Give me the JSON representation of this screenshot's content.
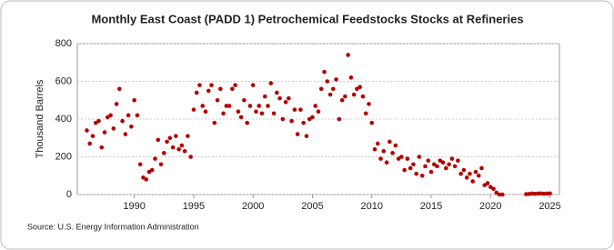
{
  "chart_data": {
    "type": "scatter",
    "title": "Monthly East Coast (PADD 1) Petrochemical Feedstocks Stocks at Refineries",
    "y_label": "Thousand Barrels",
    "source": "Source: U.S. Energy Information Administration",
    "color": "#b50000",
    "grid": true,
    "xlim": [
      1985.2,
      2025.8
    ],
    "xticks": [
      1990,
      1995,
      2000,
      2005,
      2010,
      2015,
      2020,
      2025
    ],
    "ylim": [
      0,
      800
    ],
    "yticks": [
      0,
      200,
      400,
      600,
      800
    ],
    "x": [
      1986,
      1986.25,
      1986.5,
      1986.75,
      1987,
      1987.25,
      1987.5,
      1987.75,
      1988,
      1988.25,
      1988.5,
      1988.75,
      1989,
      1989.25,
      1989.5,
      1989.75,
      1990,
      1990.25,
      1990.5,
      1990.75,
      1991,
      1991.25,
      1991.5,
      1991.75,
      1992,
      1992.25,
      1992.5,
      1992.75,
      1993,
      1993.25,
      1993.5,
      1993.75,
      1994,
      1994.25,
      1994.5,
      1994.75,
      1995,
      1995.25,
      1995.5,
      1995.75,
      1996,
      1996.25,
      1996.5,
      1996.75,
      1997,
      1997.25,
      1997.5,
      1997.75,
      1998,
      1998.25,
      1998.5,
      1998.75,
      1999,
      1999.25,
      1999.5,
      1999.75,
      2000,
      2000.25,
      2000.5,
      2000.75,
      2001,
      2001.25,
      2001.5,
      2001.75,
      2002,
      2002.25,
      2002.5,
      2002.75,
      2003,
      2003.25,
      2003.5,
      2003.75,
      2004,
      2004.25,
      2004.5,
      2004.75,
      2005,
      2005.25,
      2005.5,
      2005.75,
      2006,
      2006.25,
      2006.5,
      2006.75,
      2007,
      2007.25,
      2007.5,
      2007.75,
      2008,
      2008.25,
      2008.5,
      2008.75,
      2009,
      2009.25,
      2009.5,
      2009.75,
      2010,
      2010.25,
      2010.5,
      2010.75,
      2011,
      2011.25,
      2011.5,
      2011.75,
      2012,
      2012.25,
      2012.5,
      2012.75,
      2013,
      2013.25,
      2013.5,
      2013.75,
      2014,
      2014.25,
      2014.5,
      2014.75,
      2015,
      2015.25,
      2015.5,
      2015.75,
      2016,
      2016.25,
      2016.5,
      2016.75,
      2017,
      2017.25,
      2017.5,
      2017.75,
      2018,
      2018.25,
      2018.5,
      2018.75,
      2019,
      2019.25,
      2019.5,
      2019.75,
      2020,
      2020.25,
      2020.5,
      2020.75,
      2021,
      2023,
      2023.25,
      2023.5,
      2023.75,
      2024,
      2024.25,
      2024.5,
      2024.75,
      2025
    ],
    "values": [
      340,
      270,
      310,
      380,
      390,
      250,
      330,
      410,
      420,
      350,
      480,
      560,
      390,
      320,
      420,
      360,
      500,
      420,
      160,
      90,
      80,
      120,
      130,
      190,
      290,
      160,
      220,
      280,
      300,
      250,
      310,
      240,
      260,
      230,
      310,
      200,
      450,
      540,
      580,
      470,
      440,
      550,
      580,
      380,
      500,
      560,
      430,
      470,
      470,
      560,
      580,
      440,
      410,
      500,
      380,
      470,
      580,
      440,
      470,
      430,
      520,
      470,
      590,
      430,
      540,
      510,
      400,
      490,
      510,
      390,
      450,
      320,
      450,
      380,
      310,
      400,
      410,
      470,
      440,
      560,
      650,
      600,
      530,
      560,
      610,
      400,
      500,
      520,
      740,
      620,
      530,
      560,
      570,
      520,
      430,
      480,
      380,
      240,
      270,
      190,
      230,
      170,
      280,
      220,
      260,
      190,
      200,
      130,
      190,
      140,
      160,
      110,
      200,
      100,
      150,
      180,
      120,
      160,
      150,
      180,
      170,
      140,
      160,
      190,
      150,
      180,
      110,
      130,
      90,
      110,
      70,
      120,
      100,
      140,
      50,
      60,
      40,
      30,
      10,
      0,
      0,
      2,
      3,
      5,
      4,
      5,
      6,
      4,
      5,
      6
    ]
  }
}
